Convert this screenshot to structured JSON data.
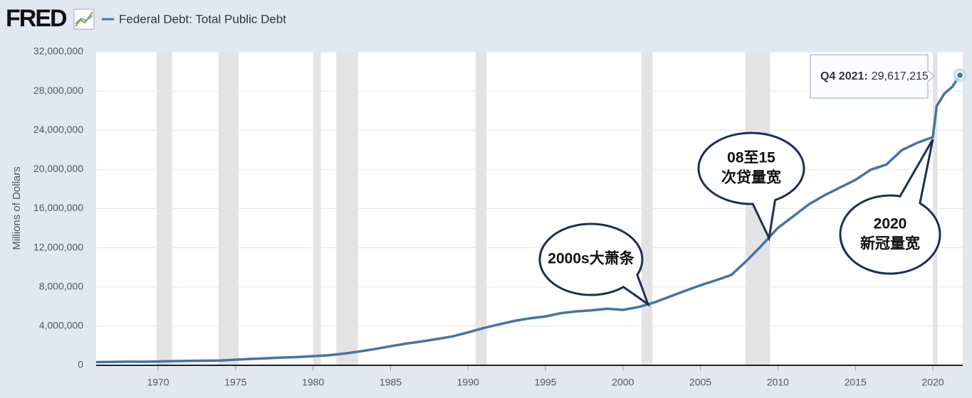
{
  "logo": "FRED",
  "chart_data": {
    "type": "line",
    "ylabel": "Millions of Dollars",
    "x": [
      1966,
      1967,
      1968,
      1969,
      1970,
      1971,
      1972,
      1973,
      1974,
      1975,
      1976,
      1977,
      1978,
      1979,
      1980,
      1981,
      1982,
      1983,
      1984,
      1985,
      1986,
      1987,
      1988,
      1989,
      1990,
      1991,
      1992,
      1993,
      1994,
      1995,
      1996,
      1997,
      1998,
      1999,
      2000,
      2001,
      2002,
      2003,
      2004,
      2005,
      2006,
      2007,
      2008,
      2009,
      2010,
      2011,
      2012,
      2013,
      2014,
      2015,
      2016,
      2017,
      2018,
      2019,
      2020,
      2020.25,
      2020.75,
      2021.25,
      2021.75
    ],
    "series": [
      {
        "name": "Federal Debt: Total Public Debt",
        "color": "#4572a7",
        "values": [
          329000,
          341000,
          369000,
          366000,
          389000,
          424000,
          449000,
          469000,
          492000,
          576000,
          653000,
          718000,
          789000,
          845000,
          930000,
          1028000,
          1197000,
          1410000,
          1663000,
          1945000,
          2214000,
          2431000,
          2684000,
          2953000,
          3364000,
          3802000,
          4177000,
          4536000,
          4801000,
          4988000,
          5323000,
          5503000,
          5614000,
          5776000,
          5662000,
          5943000,
          6405000,
          6998000,
          7596000,
          8170000,
          8680000,
          9229000,
          10700000,
          12311000,
          14025000,
          15223000,
          16433000,
          17352000,
          18141000,
          18922000,
          19977000,
          20493000,
          21974000,
          22719000,
          23300000,
          26477000,
          27748000,
          28428000,
          29617215
        ]
      }
    ],
    "recessions": [
      [
        1969.9,
        1970.9
      ],
      [
        1973.9,
        1975.2
      ],
      [
        1980.0,
        1980.5
      ],
      [
        1981.5,
        1982.9
      ],
      [
        1990.5,
        1991.2
      ],
      [
        2001.2,
        2001.9
      ],
      [
        2007.9,
        2009.5
      ],
      [
        2020.0,
        2020.3
      ]
    ],
    "xlim": [
      1966,
      2021.93
    ],
    "ylim": [
      0,
      32000000
    ],
    "xticks": [
      1970,
      1975,
      1980,
      1985,
      1990,
      1995,
      2000,
      2005,
      2010,
      2015,
      2020
    ],
    "yticks": [
      0,
      {
        "value": 4000000,
        "label": "4,000,000"
      },
      {
        "value": 8000000,
        "label": "8,000,000"
      },
      {
        "value": 12000000,
        "label": "12,000,000"
      },
      {
        "value": 16000000,
        "label": "16,000,000"
      },
      {
        "value": 20000000,
        "label": "20,000,000"
      },
      {
        "value": 24000000,
        "label": "24,000,000"
      },
      {
        "value": 28000000,
        "label": "28,000,000"
      },
      {
        "value": 32000000,
        "label": "32,000,000"
      }
    ],
    "grid": true,
    "tooltip": {
      "title": "Q4 2021:",
      "value": 29617215,
      "label": "29,617,215"
    },
    "annotations": [
      {
        "lines": [
          "2000s大萧条"
        ]
      },
      {
        "lines": [
          "08至15",
          "次贷量宽"
        ]
      },
      {
        "lines": [
          "2020",
          "新冠量宽"
        ]
      }
    ]
  }
}
